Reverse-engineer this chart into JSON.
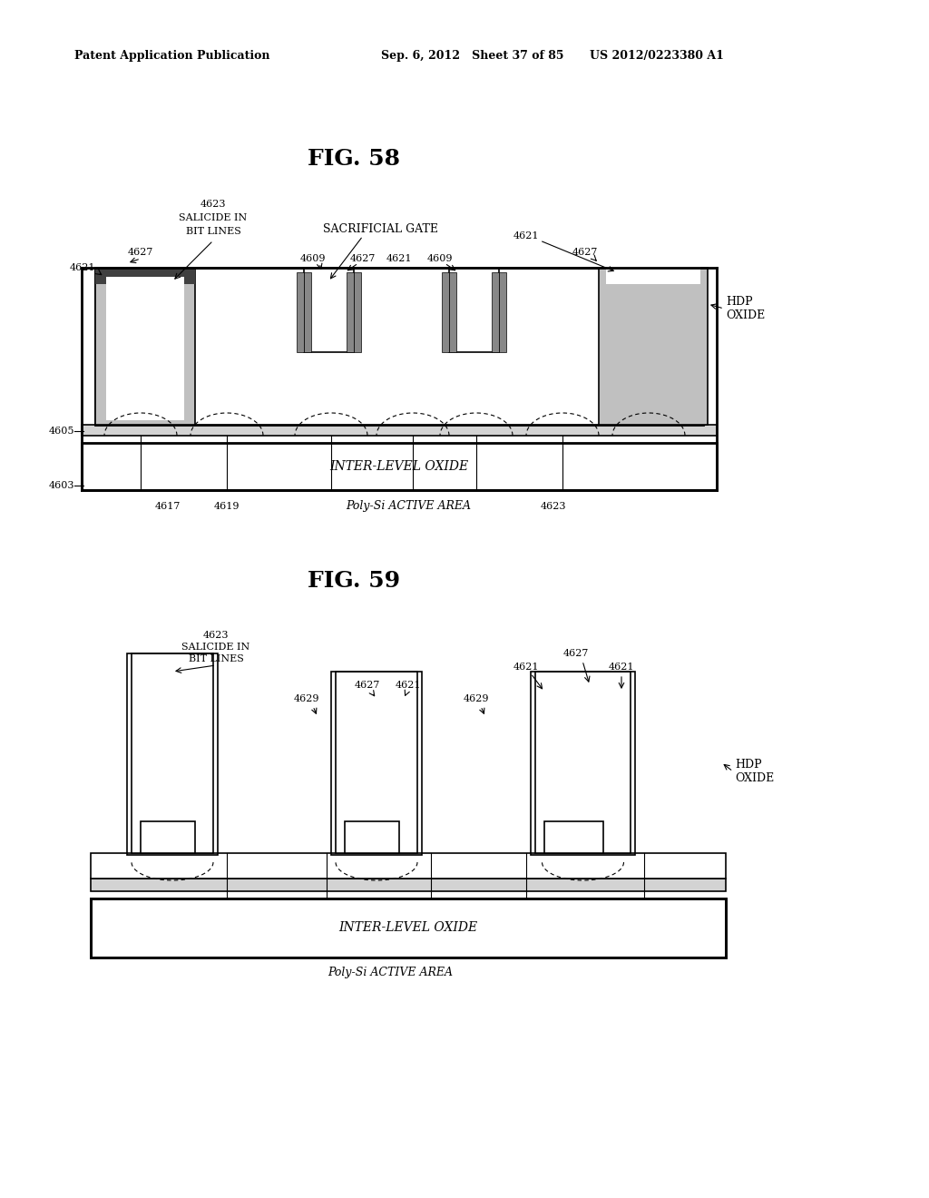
{
  "bg_color": "#ffffff",
  "text_color": "#000000",
  "header_left": "Patent Application Publication",
  "header_mid": "Sep. 6, 2012   Sheet 37 of 85",
  "header_right": "US 2012/0223380 A1",
  "fig58_title": "FIG. 58",
  "fig59_title": "FIG. 59"
}
